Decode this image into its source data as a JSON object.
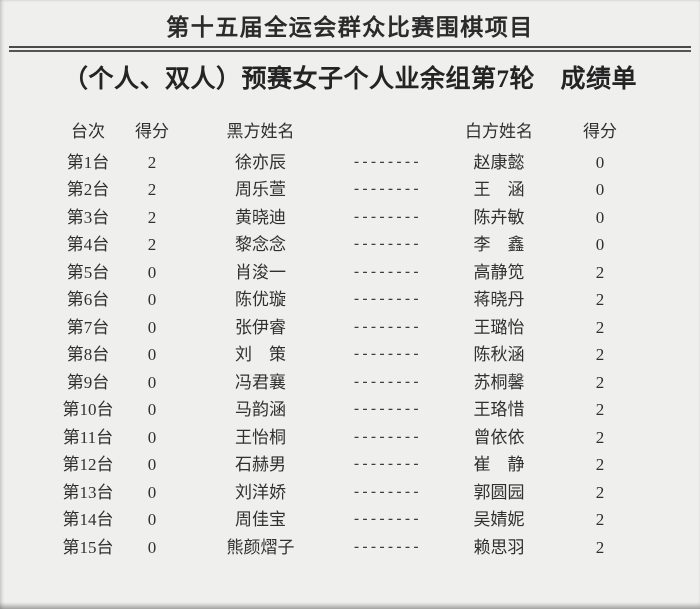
{
  "page": {
    "title": "第十五届全运会群众比赛围棋项目",
    "subtitle": "（个人、双人）预赛女子个人业余组第7轮　成绩单"
  },
  "table": {
    "headers": {
      "board": "台次",
      "black_score": "得分",
      "black_name": "黑方姓名",
      "white_name": "白方姓名",
      "white_score": "得分"
    },
    "separator": "--------",
    "rows": [
      {
        "board": "第1台",
        "black_score": "2",
        "black_name": "徐亦辰",
        "white_name": "赵康懿",
        "white_score": "0"
      },
      {
        "board": "第2台",
        "black_score": "2",
        "black_name": "周乐萱",
        "white_name": "王　涵",
        "white_score": "0"
      },
      {
        "board": "第3台",
        "black_score": "2",
        "black_name": "黄晓迪",
        "white_name": "陈卉敏",
        "white_score": "0"
      },
      {
        "board": "第4台",
        "black_score": "2",
        "black_name": "黎念念",
        "white_name": "李　鑫",
        "white_score": "0"
      },
      {
        "board": "第5台",
        "black_score": "0",
        "black_name": "肖浚一",
        "white_name": "高静笕",
        "white_score": "2"
      },
      {
        "board": "第6台",
        "black_score": "0",
        "black_name": "陈优璇",
        "white_name": "蒋晓丹",
        "white_score": "2"
      },
      {
        "board": "第7台",
        "black_score": "0",
        "black_name": "张伊睿",
        "white_name": "王璐怡",
        "white_score": "2"
      },
      {
        "board": "第8台",
        "black_score": "0",
        "black_name": "刘　策",
        "white_name": "陈秋涵",
        "white_score": "2"
      },
      {
        "board": "第9台",
        "black_score": "0",
        "black_name": "冯君襄",
        "white_name": "苏桐馨",
        "white_score": "2"
      },
      {
        "board": "第10台",
        "black_score": "0",
        "black_name": "马韵涵",
        "white_name": "王珞惜",
        "white_score": "2"
      },
      {
        "board": "第11台",
        "black_score": "0",
        "black_name": "王怡桐",
        "white_name": "曾依依",
        "white_score": "2"
      },
      {
        "board": "第12台",
        "black_score": "0",
        "black_name": "石赫男",
        "white_name": "崔　静",
        "white_score": "2"
      },
      {
        "board": "第13台",
        "black_score": "0",
        "black_name": "刘洋娇",
        "white_name": "郭圆园",
        "white_score": "2"
      },
      {
        "board": "第14台",
        "black_score": "0",
        "black_name": "周佳宝",
        "white_name": "吴婧妮",
        "white_score": "2"
      },
      {
        "board": "第15台",
        "black_score": "0",
        "black_name": "熊颜熠子",
        "white_name": "赖思羽",
        "white_score": "2"
      }
    ]
  },
  "colors": {
    "background": "#efefed",
    "text": "#2d2d2d",
    "rule": "#4a4a4a"
  }
}
